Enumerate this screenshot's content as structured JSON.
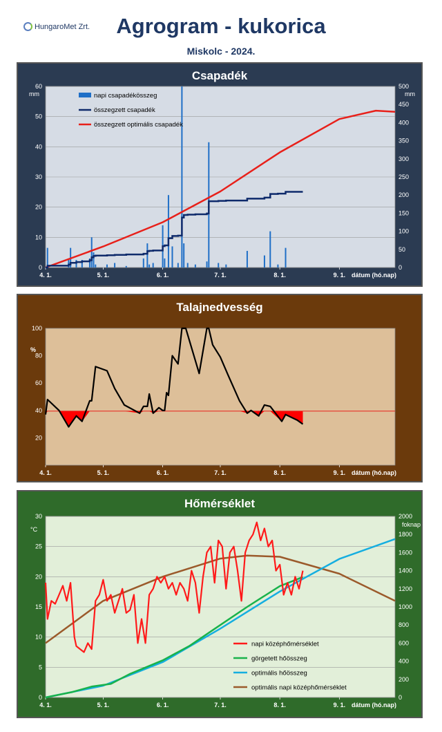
{
  "header": {
    "logo_text": "HungaroMet Zrt.",
    "title": "Agrogram - kukorica",
    "subtitle": "Miskolc  - 2024."
  },
  "chart_data": [
    {
      "type": "bar+line",
      "title": "Csapadék",
      "xlabel": "dátum (hó.nap)",
      "ylabel_left": "mm",
      "ylabel_right": "mm",
      "ylim_left": [
        0,
        60
      ],
      "ylim_right": [
        0,
        500
      ],
      "x_range": [
        "2024-04-01",
        "2024-09-30"
      ],
      "x_tick_labels": [
        "4. 1.",
        "5. 1.",
        "6. 1.",
        "7. 1.",
        "8. 1.",
        "9. 1."
      ],
      "y_ticks_left": [
        0,
        10,
        20,
        30,
        40,
        50,
        60
      ],
      "y_ticks_right": [
        0,
        50,
        100,
        150,
        200,
        250,
        300,
        350,
        400,
        450,
        500
      ],
      "legend": [
        "napi csapadékösszeg",
        "összegzett csapadék",
        "összegzett optimális csapadék"
      ],
      "colors": {
        "bars": "#1f6fc7",
        "cumulative": "#0e2a6b",
        "optimal": "#e8201a"
      },
      "series": [
        {
          "name": "napi csapadékösszeg",
          "axis": "left",
          "type": "bar",
          "x": [
            "2024-04-02",
            "2024-04-13",
            "2024-04-14",
            "2024-04-17",
            "2024-04-20",
            "2024-04-24",
            "2024-04-25",
            "2024-04-26",
            "2024-04-27",
            "2024-05-03",
            "2024-05-07",
            "2024-05-13",
            "2024-05-22",
            "2024-05-24",
            "2024-05-25",
            "2024-05-27",
            "2024-06-01",
            "2024-06-02",
            "2024-06-04",
            "2024-06-06",
            "2024-06-09",
            "2024-06-11",
            "2024-06-12",
            "2024-06-14",
            "2024-06-18",
            "2024-06-24",
            "2024-06-25",
            "2024-06-30",
            "2024-07-04",
            "2024-07-15",
            "2024-07-24",
            "2024-07-27",
            "2024-07-31",
            "2024-08-04"
          ],
          "values": [
            6.5,
            3,
            6.5,
            2.5,
            2.5,
            3,
            10,
            5,
            1,
            1,
            1.5,
            0.5,
            3,
            8,
            1,
            1.5,
            14,
            3,
            24,
            7,
            1.5,
            60,
            8,
            1.5,
            1,
            2,
            41.5,
            1.5,
            1,
            5.5,
            4,
            12,
            1,
            6.5
          ]
        },
        {
          "name": "összegzett csapadék",
          "axis": "right",
          "type": "line",
          "x": [
            "2024-04-01",
            "2024-04-02",
            "2024-04-13",
            "2024-04-14",
            "2024-04-17",
            "2024-04-20",
            "2024-04-24",
            "2024-04-25",
            "2024-04-26",
            "2024-04-27",
            "2024-05-03",
            "2024-05-07",
            "2024-05-13",
            "2024-05-22",
            "2024-05-24",
            "2024-05-25",
            "2024-05-27",
            "2024-06-01",
            "2024-06-02",
            "2024-06-04",
            "2024-06-06",
            "2024-06-09",
            "2024-06-11",
            "2024-06-12",
            "2024-06-14",
            "2024-06-18",
            "2024-06-24",
            "2024-06-25",
            "2024-06-30",
            "2024-07-04",
            "2024-07-15",
            "2024-07-24",
            "2024-07-27",
            "2024-07-31",
            "2024-08-04",
            "2024-08-13"
          ],
          "values": [
            0,
            5,
            8,
            13,
            15,
            17,
            20,
            28,
            32,
            33,
            34,
            35,
            36,
            38,
            45,
            46,
            47,
            59,
            61,
            81,
            87,
            88,
            138,
            145,
            146,
            147,
            149,
            183,
            184,
            185,
            190,
            193,
            203,
            204,
            209,
            209
          ]
        },
        {
          "name": "összegzett optimális csapadék",
          "axis": "right",
          "type": "line",
          "x": [
            "2024-04-01",
            "2024-05-01",
            "2024-06-01",
            "2024-07-01",
            "2024-08-01",
            "2024-09-01",
            "2024-09-20",
            "2024-09-30"
          ],
          "values": [
            0,
            58,
            125,
            210,
            318,
            410,
            433,
            430
          ]
        }
      ]
    },
    {
      "type": "line",
      "title": "Talajnedvesség",
      "xlabel": "dátum (hó.nap)",
      "ylabel": "%",
      "ylim": [
        0,
        100
      ],
      "y_ticks": [
        20,
        40,
        60,
        80,
        100
      ],
      "x_range": [
        "2024-04-01",
        "2024-09-30"
      ],
      "x_tick_labels": [
        "4. 1.",
        "5. 1.",
        "6. 1.",
        "7. 1.",
        "8. 1.",
        "9. 1."
      ],
      "threshold": 39.5,
      "colors": {
        "line": "#000000",
        "threshold": "#e8201a",
        "deficit_fill": "#ff0000"
      },
      "series": [
        {
          "name": "talajnedvesség",
          "x": [
            "2024-04-01",
            "2024-04-02",
            "2024-04-08",
            "2024-04-13",
            "2024-04-14",
            "2024-04-17",
            "2024-04-20",
            "2024-04-24",
            "2024-04-25",
            "2024-04-27",
            "2024-05-03",
            "2024-05-07",
            "2024-05-12",
            "2024-05-20",
            "2024-05-22",
            "2024-05-24",
            "2024-05-25",
            "2024-05-27",
            "2024-05-30",
            "2024-06-01",
            "2024-06-02",
            "2024-06-03",
            "2024-06-04",
            "2024-06-06",
            "2024-06-09",
            "2024-06-11",
            "2024-06-13",
            "2024-06-20",
            "2024-06-24",
            "2024-06-25",
            "2024-06-27",
            "2024-07-01",
            "2024-07-05",
            "2024-07-11",
            "2024-07-15",
            "2024-07-17",
            "2024-07-21",
            "2024-07-24",
            "2024-07-27",
            "2024-08-02",
            "2024-08-04",
            "2024-08-10",
            "2024-08-13"
          ],
          "values": [
            37,
            48,
            40,
            28,
            30,
            36,
            32,
            47,
            47,
            72,
            69,
            56,
            44,
            38,
            43,
            43,
            52,
            38,
            42,
            40,
            40,
            53,
            51,
            80,
            74,
            100,
            100,
            67,
            100,
            100,
            88,
            79,
            66,
            47,
            38,
            40,
            36,
            44,
            43,
            32,
            37,
            33,
            30
          ]
        }
      ]
    },
    {
      "type": "line",
      "title": "Hőmérséklet",
      "xlabel": "dátum (hó.nap)",
      "ylabel_left": "°C",
      "ylabel_right": "foknap",
      "ylim_left": [
        0,
        30
      ],
      "ylim_right": [
        0,
        2000
      ],
      "y_ticks_left": [
        0,
        5,
        10,
        15,
        20,
        25,
        30
      ],
      "y_ticks_right": [
        0,
        200,
        400,
        600,
        800,
        1000,
        1200,
        1400,
        1600,
        1800,
        2000
      ],
      "x_range": [
        "2024-04-01",
        "2024-09-30"
      ],
      "x_tick_labels": [
        "4. 1.",
        "5. 1.",
        "6. 1.",
        "7. 1.",
        "8. 1.",
        "9. 1."
      ],
      "legend": [
        "napi középhőmérséklet",
        "görgetett hőösszeg",
        "optimális hőösszeg",
        "optimális napi középhőmérséklet"
      ],
      "colors": {
        "daily": "#ff1a1a",
        "cum": "#19b24b",
        "opt_cum": "#15aee0",
        "opt_daily": "#9b5a2b"
      },
      "series": [
        {
          "name": "napi középhőmérséklet",
          "axis": "left",
          "x": [
            "2024-04-01",
            "2024-04-02",
            "2024-04-04",
            "2024-04-06",
            "2024-04-08",
            "2024-04-10",
            "2024-04-12",
            "2024-04-14",
            "2024-04-16",
            "2024-04-17",
            "2024-04-19",
            "2024-04-21",
            "2024-04-23",
            "2024-04-25",
            "2024-04-27",
            "2024-04-29",
            "2024-05-01",
            "2024-05-03",
            "2024-05-05",
            "2024-05-07",
            "2024-05-09",
            "2024-05-11",
            "2024-05-13",
            "2024-05-15",
            "2024-05-17",
            "2024-05-19",
            "2024-05-21",
            "2024-05-23",
            "2024-05-25",
            "2024-05-27",
            "2024-05-29",
            "2024-05-31",
            "2024-06-02",
            "2024-06-04",
            "2024-06-06",
            "2024-06-08",
            "2024-06-10",
            "2024-06-12",
            "2024-06-14",
            "2024-06-16",
            "2024-06-18",
            "2024-06-20",
            "2024-06-22",
            "2024-06-24",
            "2024-06-26",
            "2024-06-28",
            "2024-06-30",
            "2024-07-02",
            "2024-07-04",
            "2024-07-06",
            "2024-07-08",
            "2024-07-10",
            "2024-07-12",
            "2024-07-14",
            "2024-07-16",
            "2024-07-18",
            "2024-07-20",
            "2024-07-22",
            "2024-07-24",
            "2024-07-26",
            "2024-07-28",
            "2024-07-30",
            "2024-08-01",
            "2024-08-03",
            "2024-08-05",
            "2024-08-07",
            "2024-08-09",
            "2024-08-11",
            "2024-08-13"
          ],
          "values": [
            19,
            13,
            16,
            15.5,
            17,
            18.5,
            16,
            19,
            10,
            8.5,
            8,
            7.5,
            9,
            8,
            16,
            17,
            19.5,
            16,
            17,
            14,
            16,
            18,
            14,
            14.5,
            17,
            9,
            13,
            9,
            17,
            18,
            20,
            19,
            20,
            18,
            19,
            17,
            19,
            18,
            16,
            21,
            19,
            14,
            20,
            24,
            25,
            19,
            26,
            25,
            18,
            24,
            25,
            21,
            16,
            24,
            26,
            27,
            29,
            26,
            28,
            25,
            26,
            21,
            22,
            17,
            19,
            17,
            20,
            18,
            21
          ]
        },
        {
          "name": "görgetett hőösszeg",
          "axis": "right",
          "x": [
            "2024-04-01",
            "2024-04-15",
            "2024-04-25",
            "2024-05-05",
            "2024-05-15",
            "2024-06-01",
            "2024-06-15",
            "2024-07-01",
            "2024-07-15",
            "2024-08-01",
            "2024-08-13"
          ],
          "values": [
            0,
            60,
            120,
            150,
            260,
            410,
            570,
            800,
            1000,
            1230,
            1330
          ]
        },
        {
          "name": "optimális hőösszeg",
          "axis": "right",
          "x": [
            "2024-04-01",
            "2024-05-01",
            "2024-06-01",
            "2024-07-01",
            "2024-08-01",
            "2024-09-01",
            "2024-09-30"
          ],
          "values": [
            0,
            130,
            390,
            760,
            1170,
            1530,
            1750
          ]
        },
        {
          "name": "optimális napi középhőmérséklet",
          "axis": "left",
          "x": [
            "2024-04-01",
            "2024-05-01",
            "2024-06-01",
            "2024-07-01",
            "2024-07-15",
            "2024-08-01",
            "2024-09-01",
            "2024-09-30"
          ],
          "values": [
            9,
            16,
            20,
            23,
            23.5,
            23.3,
            20.5,
            16
          ]
        }
      ]
    }
  ]
}
